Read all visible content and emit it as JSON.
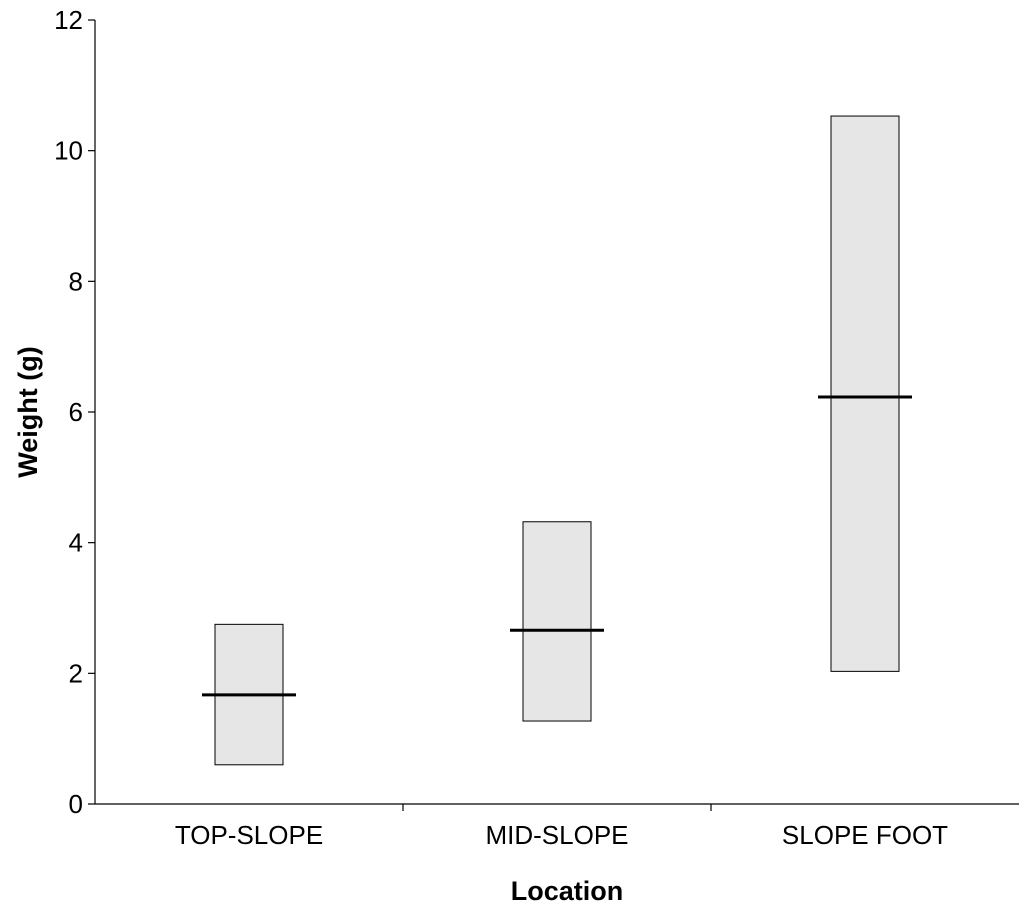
{
  "chart_data": {
    "type": "bar",
    "xlabel": "Location",
    "ylabel": "Weight (g)",
    "ylim": [
      0,
      12
    ],
    "yticks": [
      0,
      2,
      4,
      6,
      8,
      10,
      12
    ],
    "grid": false,
    "categories": [
      "TOP-SLOPE",
      "MID-SLOPE",
      "SLOPE FOOT"
    ],
    "series": [
      {
        "values_low": [
          0.6,
          1.27,
          2.03
        ],
        "values_high": [
          2.75,
          4.32,
          10.53
        ],
        "values_median": [
          1.67,
          2.66,
          6.23
        ]
      }
    ],
    "colors": {
      "box_fill": "#e6e6e6",
      "box_stroke": "#000000",
      "median": "#000000"
    }
  }
}
